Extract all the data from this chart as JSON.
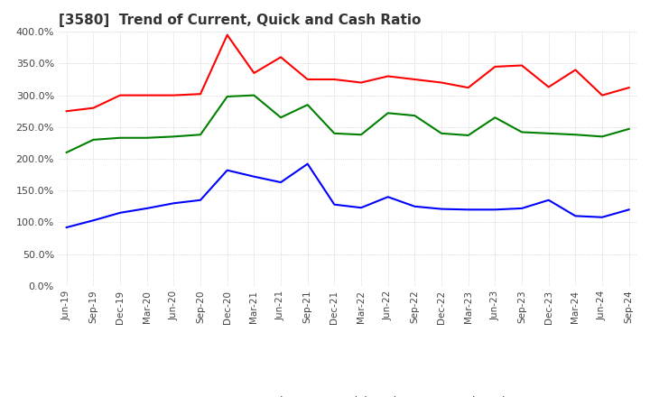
{
  "title": "[3580]  Trend of Current, Quick and Cash Ratio",
  "x_labels": [
    "Jun-19",
    "Sep-19",
    "Dec-19",
    "Mar-20",
    "Jun-20",
    "Sep-20",
    "Dec-20",
    "Mar-21",
    "Jun-21",
    "Sep-21",
    "Dec-21",
    "Mar-22",
    "Jun-22",
    "Sep-22",
    "Dec-22",
    "Mar-23",
    "Jun-23",
    "Sep-23",
    "Dec-23",
    "Mar-24",
    "Jun-24",
    "Sep-24"
  ],
  "current_ratio": [
    275,
    280,
    300,
    300,
    300,
    302,
    395,
    335,
    360,
    325,
    325,
    320,
    330,
    325,
    320,
    312,
    345,
    347,
    313,
    340,
    300,
    312
  ],
  "quick_ratio": [
    210,
    230,
    233,
    233,
    235,
    238,
    298,
    300,
    265,
    285,
    240,
    238,
    272,
    268,
    240,
    237,
    265,
    242,
    240,
    238,
    235,
    247
  ],
  "cash_ratio": [
    92,
    103,
    115,
    122,
    130,
    135,
    182,
    172,
    163,
    192,
    128,
    123,
    140,
    125,
    121,
    120,
    120,
    122,
    135,
    110,
    108,
    120
  ],
  "current_color": "#ff0000",
  "quick_color": "#008000",
  "cash_color": "#0000ff",
  "ylim": [
    0,
    400
  ],
  "yticks": [
    0,
    50,
    100,
    150,
    200,
    250,
    300,
    350,
    400
  ],
  "background_color": "#ffffff",
  "grid_color": "#aaaaaa"
}
